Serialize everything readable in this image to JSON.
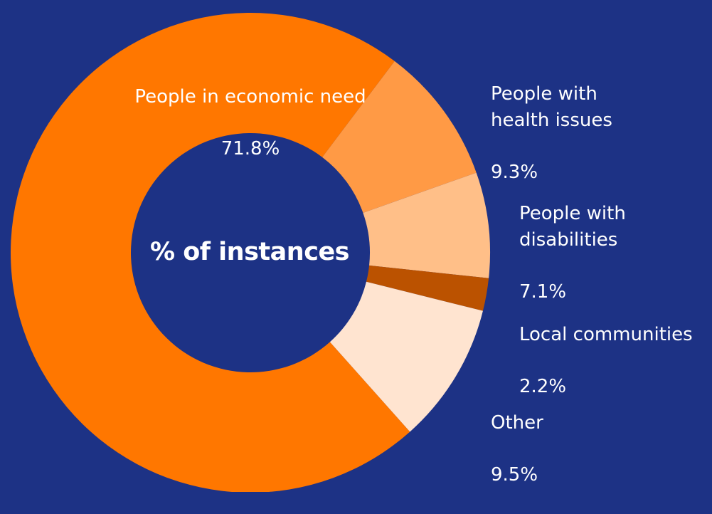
{
  "colors": {
    "background": "#1d3285",
    "slices": [
      "#ff7700",
      "#ff9a45",
      "#ffbf88",
      "#bb5200",
      "#ffe4d0"
    ]
  },
  "chart_data": {
    "type": "pie",
    "title": "% of instances",
    "donut": true,
    "slices": [
      {
        "label": "People in economic need",
        "value": 71.8,
        "display": "71.8%"
      },
      {
        "label": "People with\nhealth issues",
        "value": 9.3,
        "display": "9.3%"
      },
      {
        "label": "People with\ndisabilities",
        "value": 7.1,
        "display": "7.1%"
      },
      {
        "label": "Local communities",
        "value": 2.2,
        "display": "2.2%"
      },
      {
        "label": "Other",
        "value": 9.5,
        "display": "9.5%"
      }
    ]
  }
}
